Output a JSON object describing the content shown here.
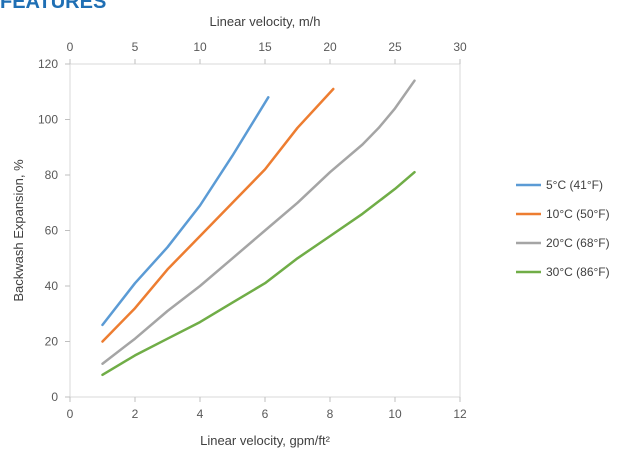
{
  "header": {
    "clipped_title": "FEATURES"
  },
  "chart_data": {
    "type": "line",
    "title": "",
    "xlabel": "Linear velocity, gpm/ft²",
    "x2label": "Linear velocity, m/h",
    "ylabel": "Backwash Expansion, %",
    "xlim": [
      0,
      12
    ],
    "x2lim": [
      0,
      30
    ],
    "ylim": [
      0,
      120
    ],
    "x_ticks": [
      0,
      2,
      4,
      6,
      8,
      10,
      12
    ],
    "x2_ticks": [
      0,
      5,
      10,
      15,
      20,
      25,
      30
    ],
    "y_ticks": [
      0,
      20,
      40,
      60,
      80,
      100,
      120
    ],
    "grid": "none",
    "legend": "right",
    "series": [
      {
        "name": "5°C (41°F)",
        "color": "#5b9bd5",
        "x": [
          1.0,
          2.0,
          3.0,
          4.0,
          5.0,
          6.1
        ],
        "y": [
          26,
          41,
          54,
          69,
          87,
          108
        ]
      },
      {
        "name": "10°C (50°F)",
        "color": "#ed7d31",
        "x": [
          1.0,
          2.0,
          3.0,
          4.0,
          5.0,
          6.0,
          7.0,
          8.1
        ],
        "y": [
          20,
          32,
          46,
          58,
          70,
          82,
          97,
          111
        ]
      },
      {
        "name": "20°C (68°F)",
        "color": "#a5a5a5",
        "x": [
          1.0,
          2.0,
          3.0,
          4.0,
          5.0,
          6.0,
          7.0,
          8.0,
          9.0,
          9.5,
          10.0,
          10.6
        ],
        "y": [
          12,
          21,
          31,
          40,
          50,
          60,
          70,
          81,
          91,
          97,
          104,
          114
        ]
      },
      {
        "name": "30°C (86°F)",
        "color": "#70ad47",
        "x": [
          1.0,
          2.0,
          3.0,
          4.0,
          5.0,
          6.0,
          7.0,
          8.0,
          9.0,
          10.0,
          10.6
        ],
        "y": [
          8,
          15,
          21,
          27,
          34,
          41,
          50,
          58,
          66,
          75,
          81
        ]
      }
    ]
  }
}
